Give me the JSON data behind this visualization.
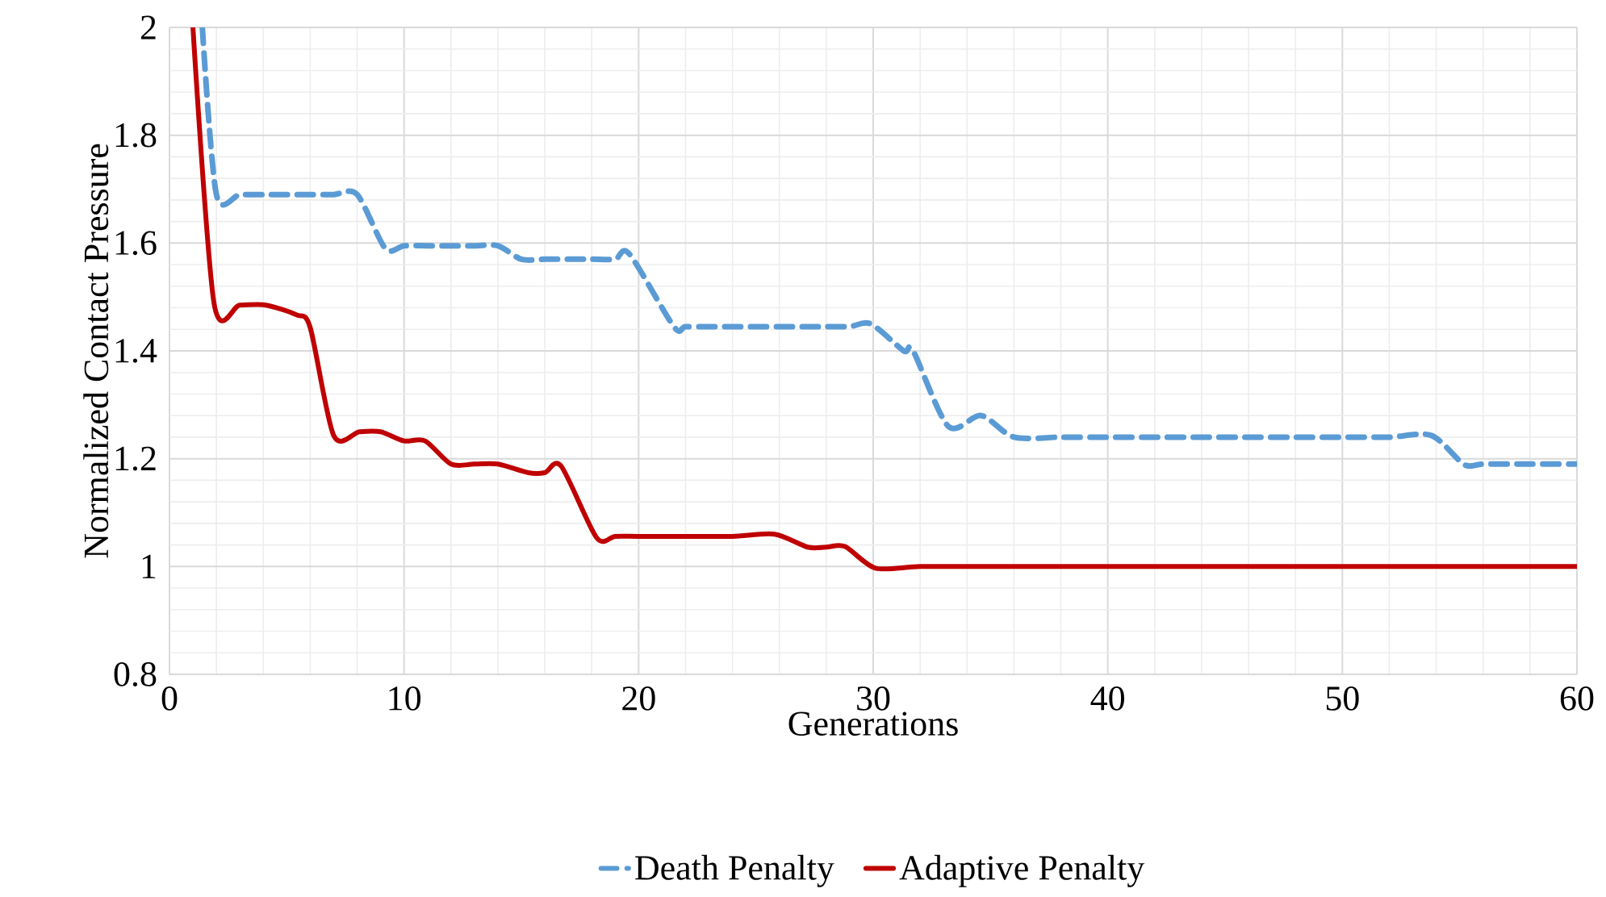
{
  "chart_data": {
    "type": "line",
    "xlabel": "Generations",
    "ylabel": "Normalized Contact Pressure",
    "xlim": [
      0,
      60
    ],
    "ylim": [
      0.8,
      2
    ],
    "xticks": [
      0,
      10,
      20,
      30,
      40,
      50,
      60
    ],
    "yticks": [
      0.8,
      1,
      1.2,
      1.4,
      1.6,
      1.8,
      2
    ],
    "grid": true,
    "legend": "bottom",
    "marker": "none",
    "series": [
      {
        "name": "Death Penalty",
        "color": "#5b9bd5",
        "line_style": "dashed",
        "x": [
          1.4,
          2,
          3,
          4,
          5,
          6,
          7,
          8,
          9.2,
          10,
          11,
          12,
          13,
          14,
          15,
          16,
          17,
          18,
          19,
          19.6,
          21.5,
          22,
          23,
          24,
          25,
          26,
          27,
          28,
          29,
          29.9,
          31.3,
          31.7,
          33.2,
          34.6,
          36,
          38,
          40,
          42,
          44,
          46,
          48,
          50,
          52,
          53.8,
          55.2,
          56,
          58,
          60
        ],
        "values": [
          2.0,
          1.69,
          1.69,
          1.69,
          1.69,
          1.69,
          1.69,
          1.69,
          1.59,
          1.595,
          1.595,
          1.595,
          1.595,
          1.595,
          1.57,
          1.57,
          1.57,
          1.57,
          1.57,
          1.58,
          1.445,
          1.445,
          1.445,
          1.445,
          1.445,
          1.445,
          1.445,
          1.445,
          1.445,
          1.45,
          1.4,
          1.4,
          1.26,
          1.28,
          1.24,
          1.24,
          1.24,
          1.24,
          1.24,
          1.24,
          1.24,
          1.24,
          1.24,
          1.243,
          1.189,
          1.19,
          1.19,
          1.19
        ]
      },
      {
        "name": "Adaptive Penalty",
        "color": "#c00000",
        "line_style": "solid",
        "x": [
          1,
          1.9,
          3,
          4.1,
          5.4,
          6,
          7,
          8.1,
          9,
          10,
          10.9,
          12,
          13,
          14,
          15.3,
          16,
          16.7,
          18.2,
          19,
          20,
          22,
          24,
          25.8,
          27.2,
          28,
          28.8,
          30.1,
          32,
          35,
          40,
          45,
          50,
          55,
          60
        ],
        "values": [
          2.0,
          1.488,
          1.485,
          1.485,
          1.467,
          1.443,
          1.243,
          1.25,
          1.25,
          1.233,
          1.233,
          1.19,
          1.19,
          1.19,
          1.174,
          1.174,
          1.186,
          1.054,
          1.056,
          1.056,
          1.056,
          1.056,
          1.06,
          1.036,
          1.036,
          1.037,
          0.997,
          1.0,
          1.0,
          1.0,
          1.0,
          1.0,
          1.0,
          1.0
        ]
      }
    ]
  }
}
